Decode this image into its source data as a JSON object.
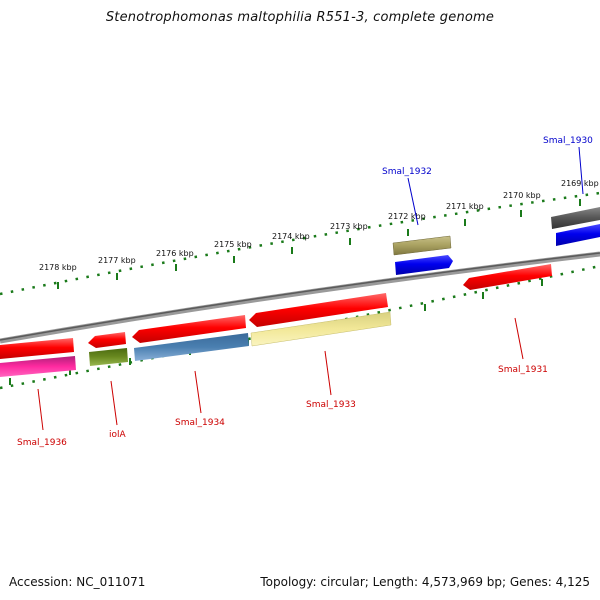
{
  "title": "Stenotrophomonas maltophilia R551-3, complete genome",
  "footer": {
    "accession": "Accession: NC_011071",
    "summary": "Topology: circular; Length: 4,573,969 bp; Genes: 4,125"
  },
  "colors": {
    "tick": "#1a7a1a",
    "label_fwd": "#0000cc",
    "label_rev": "#cc0000",
    "backbone": "#7a7a7a"
  },
  "kbp_labels": [
    "2178 kbp",
    "2177 kbp",
    "2176 kbp",
    "2175 kbp",
    "2174 kbp",
    "2173 kbp",
    "2172 kbp",
    "2171 kbp",
    "2170 kbp",
    "2169 kbp"
  ],
  "gene_labels": {
    "smal_1930": "Smal_1930",
    "smal_1932": "Smal_1932",
    "smal_1931": "Smal_1931",
    "smal_1933": "Smal_1933",
    "smal_1934": "Smal_1934",
    "iola": "iolA",
    "smal_1936": "Smal_1936"
  }
}
